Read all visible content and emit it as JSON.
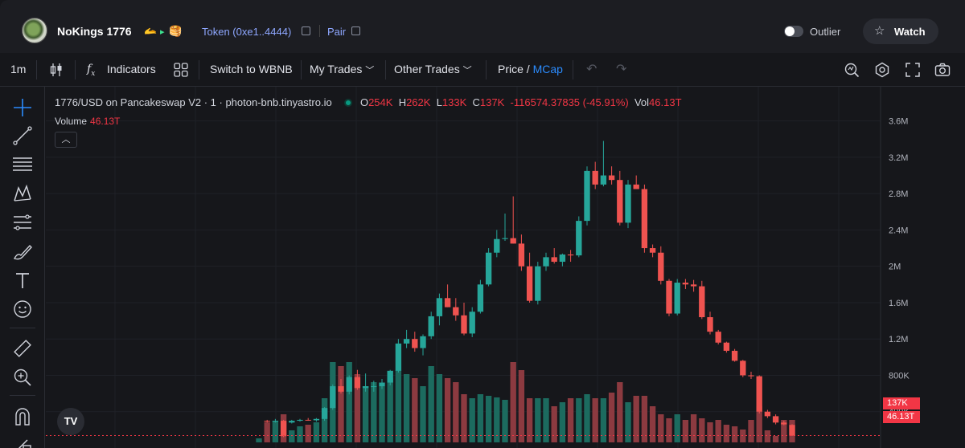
{
  "header": {
    "token_name": "NoKings 1776",
    "badges": [
      "🫴",
      "▸",
      "🥞"
    ],
    "token_link": "Token (0xe1..4444)",
    "pair_link": "Pair",
    "outlier_label": "Outlier",
    "watch_label": "Watch"
  },
  "toolbar": {
    "interval": "1m",
    "indicators": "Indicators",
    "switch": "Switch to WBNB",
    "my_trades": "My Trades",
    "other_trades": "Other Trades",
    "price": "Price",
    "slash": "/",
    "mcap": "MCap"
  },
  "chart_data": {
    "type": "candlestick",
    "title": "1776/USD on Pancakeswap V2 · 1 · photon-bnb.tinyastro.io",
    "ohlc_label": {
      "o_key": "O",
      "o": "254K",
      "h_key": "H",
      "h": "262K",
      "l_key": "L",
      "l": "133K",
      "c_key": "C",
      "c": "137K",
      "change": "-116574.37835 (-45.91%)",
      "vol_key": "Vol",
      "vol": "46.13T"
    },
    "volume_label": "Volume",
    "volume_value": "46.13T",
    "y_ticks": [
      "3.6M",
      "3.2M",
      "2.8M",
      "2.4M",
      "2M",
      "1.6M",
      "1.2M",
      "800K",
      "400K"
    ],
    "ylim": [
      0,
      3800000
    ],
    "last_price_tag": "137K",
    "last_volume_tag": "46.13T",
    "candles": [
      {
        "o": 0,
        "h": 0,
        "l": 0,
        "c": 0,
        "v": 0.05
      },
      {
        "o": 300000,
        "h": 310000,
        "l": 280000,
        "c": 290000,
        "v": 0.25
      },
      {
        "o": 290000,
        "h": 320000,
        "l": 280000,
        "c": 300000,
        "v": 0.27
      },
      {
        "o": 300000,
        "h": 310000,
        "l": 120000,
        "c": 130000,
        "v": 0.35
      },
      {
        "o": 280000,
        "h": 310000,
        "l": 270000,
        "c": 300000,
        "v": 0.15
      },
      {
        "o": 300000,
        "h": 320000,
        "l": 290000,
        "c": 310000,
        "v": 0.2
      },
      {
        "o": 310000,
        "h": 330000,
        "l": 300000,
        "c": 305000,
        "v": 0.22
      },
      {
        "o": 305000,
        "h": 330000,
        "l": 290000,
        "c": 320000,
        "v": 0.25
      },
      {
        "o": 320000,
        "h": 450000,
        "l": 300000,
        "c": 440000,
        "v": 0.55
      },
      {
        "o": 440000,
        "h": 700000,
        "l": 420000,
        "c": 680000,
        "v": 1.0
      },
      {
        "o": 680000,
        "h": 760000,
        "l": 600000,
        "c": 620000,
        "v": 0.95
      },
      {
        "o": 620000,
        "h": 800000,
        "l": 590000,
        "c": 780000,
        "v": 1.0
      },
      {
        "o": 780000,
        "h": 860000,
        "l": 640000,
        "c": 660000,
        "v": 0.85
      },
      {
        "o": 660000,
        "h": 820000,
        "l": 620000,
        "c": 680000,
        "v": 0.7
      },
      {
        "o": 680000,
        "h": 740000,
        "l": 620000,
        "c": 680000,
        "v": 0.75
      },
      {
        "o": 680000,
        "h": 760000,
        "l": 650000,
        "c": 720000,
        "v": 0.7
      },
      {
        "o": 720000,
        "h": 860000,
        "l": 690000,
        "c": 850000,
        "v": 0.8
      },
      {
        "o": 850000,
        "h": 1200000,
        "l": 830000,
        "c": 1150000,
        "v": 0.9
      },
      {
        "o": 1150000,
        "h": 1300000,
        "l": 1100000,
        "c": 1200000,
        "v": 0.85
      },
      {
        "o": 1200000,
        "h": 1280000,
        "l": 1060000,
        "c": 1100000,
        "v": 0.8
      },
      {
        "o": 1100000,
        "h": 1250000,
        "l": 1020000,
        "c": 1230000,
        "v": 0.7
      },
      {
        "o": 1230000,
        "h": 1500000,
        "l": 1200000,
        "c": 1450000,
        "v": 0.95
      },
      {
        "o": 1450000,
        "h": 1700000,
        "l": 1350000,
        "c": 1650000,
        "v": 0.85
      },
      {
        "o": 1650000,
        "h": 1800000,
        "l": 1550000,
        "c": 1550000,
        "v": 0.8
      },
      {
        "o": 1550000,
        "h": 1650000,
        "l": 1400000,
        "c": 1460000,
        "v": 0.75
      },
      {
        "o": 1460000,
        "h": 1600000,
        "l": 1240000,
        "c": 1260000,
        "v": 0.6
      },
      {
        "o": 1260000,
        "h": 1550000,
        "l": 1220000,
        "c": 1500000,
        "v": 0.55
      },
      {
        "o": 1500000,
        "h": 1850000,
        "l": 1480000,
        "c": 1800000,
        "v": 0.6
      },
      {
        "o": 1800000,
        "h": 2200000,
        "l": 1780000,
        "c": 2150000,
        "v": 0.58
      },
      {
        "o": 2150000,
        "h": 2400000,
        "l": 2100000,
        "c": 2300000,
        "v": 0.56
      },
      {
        "o": 2300000,
        "h": 2580000,
        "l": 2280000,
        "c": 2310000,
        "v": 0.53
      },
      {
        "o": 2310000,
        "h": 2770000,
        "l": 2250000,
        "c": 2250000,
        "v": 1.0
      },
      {
        "o": 2250000,
        "h": 2350000,
        "l": 1950000,
        "c": 2000000,
        "v": 0.9
      },
      {
        "o": 2000000,
        "h": 2150000,
        "l": 1600000,
        "c": 1620000,
        "v": 0.55
      },
      {
        "o": 1620000,
        "h": 2050000,
        "l": 1580000,
        "c": 2000000,
        "v": 0.55
      },
      {
        "o": 2000000,
        "h": 2150000,
        "l": 1950000,
        "c": 2100000,
        "v": 0.55
      },
      {
        "o": 2100000,
        "h": 2200000,
        "l": 2030000,
        "c": 2050000,
        "v": 0.45
      },
      {
        "o": 2050000,
        "h": 2140000,
        "l": 2000000,
        "c": 2130000,
        "v": 0.5
      },
      {
        "o": 2130000,
        "h": 2180000,
        "l": 2050000,
        "c": 2120000,
        "v": 0.55
      },
      {
        "o": 2120000,
        "h": 2550000,
        "l": 2100000,
        "c": 2500000,
        "v": 0.55
      },
      {
        "o": 2500000,
        "h": 3100000,
        "l": 2450000,
        "c": 3050000,
        "v": 0.6
      },
      {
        "o": 3050000,
        "h": 3150000,
        "l": 2850000,
        "c": 2900000,
        "v": 0.55
      },
      {
        "o": 2900000,
        "h": 3380000,
        "l": 2880000,
        "c": 3000000,
        "v": 0.55
      },
      {
        "o": 3000000,
        "h": 3100000,
        "l": 2900000,
        "c": 2950000,
        "v": 0.62
      },
      {
        "o": 2950000,
        "h": 3050000,
        "l": 2450000,
        "c": 2480000,
        "v": 0.75
      },
      {
        "o": 2480000,
        "h": 2950000,
        "l": 2420000,
        "c": 2900000,
        "v": 0.5
      },
      {
        "o": 2900000,
        "h": 3000000,
        "l": 2850000,
        "c": 2850000,
        "v": 0.58
      },
      {
        "o": 2850000,
        "h": 2900000,
        "l": 2150000,
        "c": 2200000,
        "v": 0.58
      },
      {
        "o": 2200000,
        "h": 2240000,
        "l": 2100000,
        "c": 2150000,
        "v": 0.45
      },
      {
        "o": 2150000,
        "h": 2220000,
        "l": 1800000,
        "c": 1840000,
        "v": 0.35
      },
      {
        "o": 1840000,
        "h": 1860000,
        "l": 1450000,
        "c": 1480000,
        "v": 0.3
      },
      {
        "o": 1480000,
        "h": 1860000,
        "l": 1460000,
        "c": 1820000,
        "v": 0.35
      },
      {
        "o": 1820000,
        "h": 1860000,
        "l": 1750000,
        "c": 1800000,
        "v": 0.28
      },
      {
        "o": 1800000,
        "h": 1850000,
        "l": 1720000,
        "c": 1780000,
        "v": 0.35
      },
      {
        "o": 1780000,
        "h": 1840000,
        "l": 1420000,
        "c": 1440000,
        "v": 0.3
      },
      {
        "o": 1440000,
        "h": 1500000,
        "l": 1250000,
        "c": 1280000,
        "v": 0.25
      },
      {
        "o": 1280000,
        "h": 1300000,
        "l": 1140000,
        "c": 1160000,
        "v": 0.28
      },
      {
        "o": 1160000,
        "h": 1170000,
        "l": 1050000,
        "c": 1070000,
        "v": 0.22
      },
      {
        "o": 1070000,
        "h": 1090000,
        "l": 950000,
        "c": 960000,
        "v": 0.2
      },
      {
        "o": 960000,
        "h": 970000,
        "l": 780000,
        "c": 800000,
        "v": 0.16
      },
      {
        "o": 800000,
        "h": 840000,
        "l": 760000,
        "c": 790000,
        "v": 0.28
      },
      {
        "o": 790000,
        "h": 800000,
        "l": 380000,
        "c": 400000,
        "v": 0.45
      },
      {
        "o": 400000,
        "h": 420000,
        "l": 330000,
        "c": 350000,
        "v": 0.15
      },
      {
        "o": 350000,
        "h": 370000,
        "l": 260000,
        "c": 280000,
        "v": 0.08
      },
      {
        "o": 280000,
        "h": 300000,
        "l": 250000,
        "c": 260000,
        "v": 0.28
      },
      {
        "o": 254000,
        "h": 262000,
        "l": 133000,
        "c": 137000,
        "v": 0.28
      }
    ]
  },
  "colors": {
    "up": "#26a69a",
    "down": "#ef5350",
    "vol_up": "#1c6b5f",
    "vol_down": "#8c3a40",
    "grid": "#1f2127",
    "axis_text": "#b2b5be",
    "price_line": "#f23645"
  },
  "icons": {
    "left_tools": [
      "crosshair-icon",
      "trend-line-icon",
      "horizontal-lines-icon",
      "pattern-icon",
      "fib-icon",
      "brush-icon",
      "text-icon",
      "emoji-icon",
      "ruler-icon",
      "zoom-in-icon",
      "magnet-icon",
      "lock-icon"
    ]
  }
}
